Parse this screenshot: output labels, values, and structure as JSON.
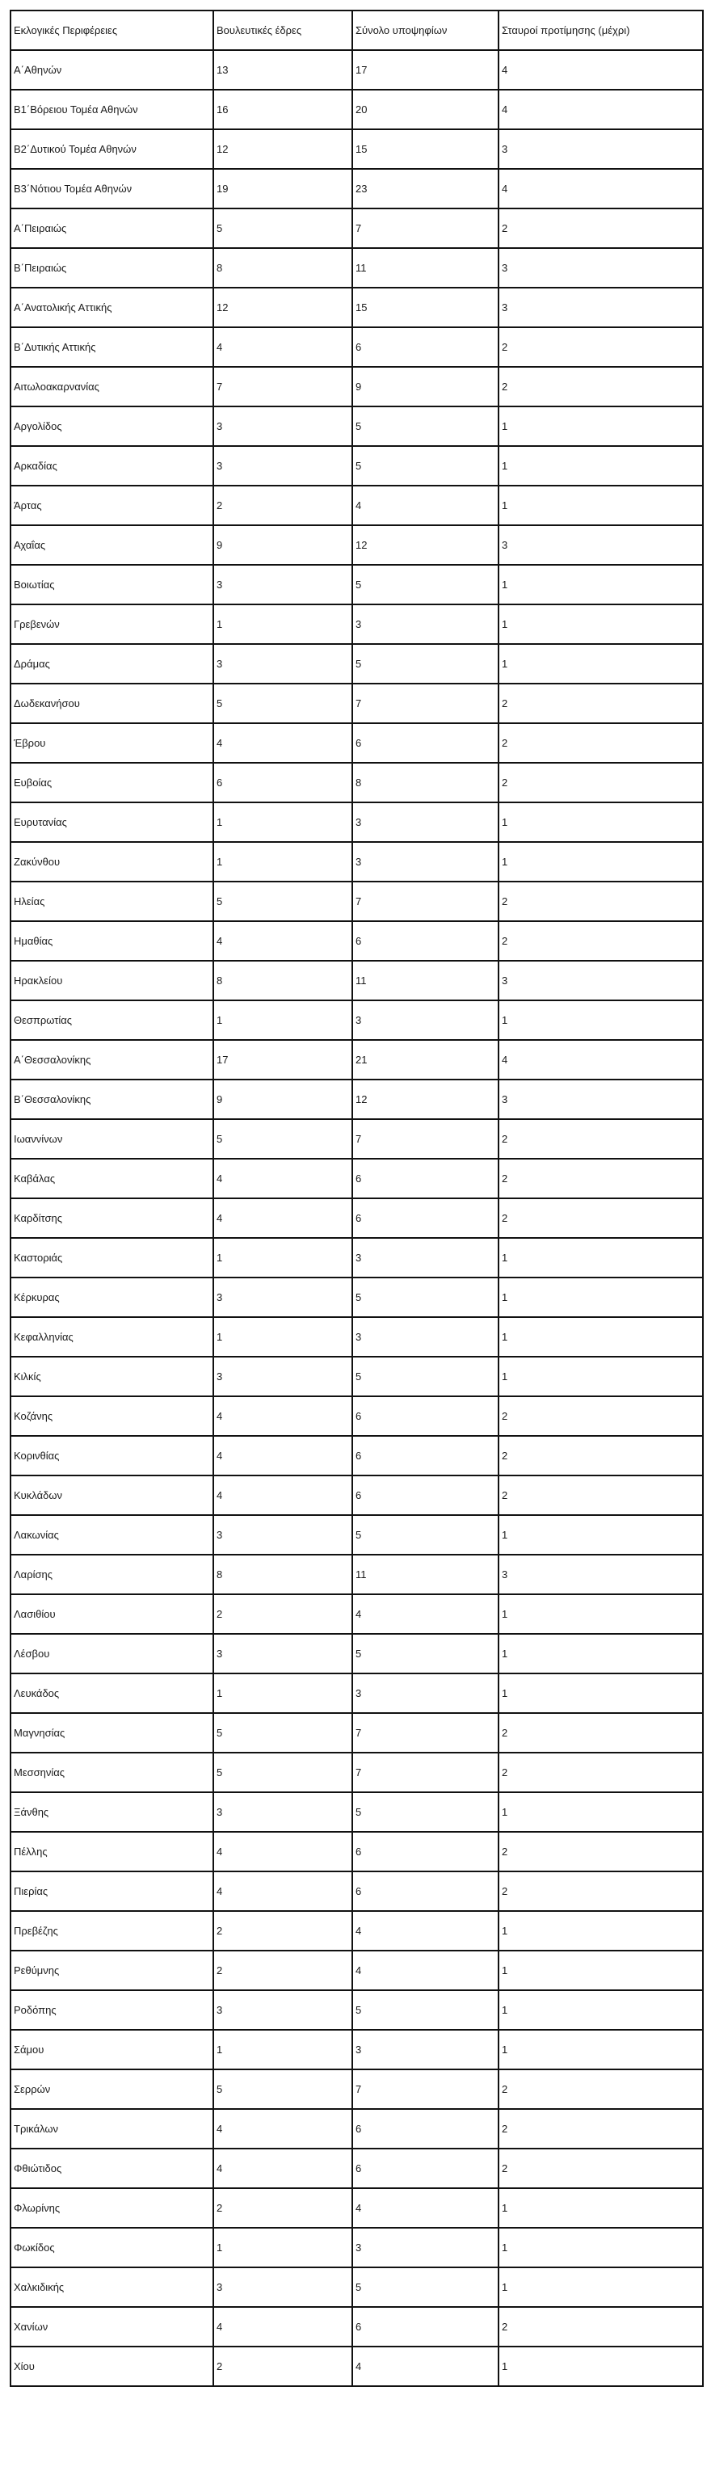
{
  "table": {
    "headers": [
      "Εκλογικές Περιφέρειες",
      "Βουλευτικές έδρες",
      "Σύνολο υποψηφίων",
      "Σταυροί προτίμησης (μέχρι)"
    ],
    "rows": [
      [
        "Α΄Αθηνών",
        "13",
        "17",
        "4"
      ],
      [
        "Β1΄Βόρειου Τομέα Αθηνών",
        "16",
        "20",
        "4"
      ],
      [
        "Β2΄Δυτικού Τομέα Αθηνών",
        "12",
        "15",
        "3"
      ],
      [
        "Β3΄Νότιου Τομέα Αθηνών",
        "19",
        "23",
        "4"
      ],
      [
        "Α΄Πειραιώς",
        "5",
        "7",
        "2"
      ],
      [
        "Β΄Πειραιώς",
        "8",
        "11",
        "3"
      ],
      [
        "Α΄Ανατολικής Αττικής",
        "12",
        "15",
        "3"
      ],
      [
        "Β΄Δυτικής Αττικής",
        "4",
        "6",
        "2"
      ],
      [
        "Αιτωλοακαρνανίας",
        "7",
        "9",
        "2"
      ],
      [
        "Αργολίδος",
        "3",
        "5",
        "1"
      ],
      [
        "Αρκαδίας",
        "3",
        "5",
        "1"
      ],
      [
        "Άρτας",
        "2",
        "4",
        "1"
      ],
      [
        "Αχαΐας",
        "9",
        "12",
        "3"
      ],
      [
        "Βοιωτίας",
        "3",
        "5",
        "1"
      ],
      [
        "Γρεβενών",
        "1",
        "3",
        "1"
      ],
      [
        "Δράμας",
        "3",
        "5",
        "1"
      ],
      [
        "Δωδεκανήσου",
        "5",
        "7",
        "2"
      ],
      [
        "Έβρου",
        "4",
        "6",
        "2"
      ],
      [
        "Ευβοίας",
        "6",
        "8",
        "2"
      ],
      [
        "Ευρυτανίας",
        "1",
        "3",
        "1"
      ],
      [
        "Ζακύνθου",
        "1",
        "3",
        "1"
      ],
      [
        "Ηλείας",
        "5",
        "7",
        "2"
      ],
      [
        "Ημαθίας",
        "4",
        "6",
        "2"
      ],
      [
        "Ηρακλείου",
        "8",
        "11",
        "3"
      ],
      [
        "Θεσπρωτίας",
        "1",
        "3",
        "1"
      ],
      [
        "Α΄Θεσσαλονίκης",
        "17",
        "21",
        "4"
      ],
      [
        "Β΄Θεσσαλονίκης",
        "9",
        "12",
        "3"
      ],
      [
        "Ιωαννίνων",
        "5",
        "7",
        "2"
      ],
      [
        "Καβάλας",
        "4",
        "6",
        "2"
      ],
      [
        "Καρδίτσης",
        "4",
        "6",
        "2"
      ],
      [
        "Καστοριάς",
        "1",
        "3",
        "1"
      ],
      [
        "Κέρκυρας",
        "3",
        "5",
        "1"
      ],
      [
        "Κεφαλληνίας",
        "1",
        "3",
        "1"
      ],
      [
        "Κιλκίς",
        "3",
        "5",
        "1"
      ],
      [
        "Κοζάνης",
        "4",
        "6",
        "2"
      ],
      [
        "Κορινθίας",
        "4",
        "6",
        "2"
      ],
      [
        "Κυκλάδων",
        "4",
        "6",
        "2"
      ],
      [
        "Λακωνίας",
        "3",
        "5",
        "1"
      ],
      [
        "Λαρίσης",
        "8",
        "11",
        "3"
      ],
      [
        "Λασιθίου",
        "2",
        "4",
        "1"
      ],
      [
        "Λέσβου",
        "3",
        "5",
        "1"
      ],
      [
        "Λευκάδος",
        "1",
        "3",
        "1"
      ],
      [
        "Μαγνησίας",
        "5",
        "7",
        "2"
      ],
      [
        "Μεσσηνίας",
        "5",
        "7",
        "2"
      ],
      [
        "Ξάνθης",
        "3",
        "5",
        "1"
      ],
      [
        "Πέλλης",
        "4",
        "6",
        "2"
      ],
      [
        "Πιερίας",
        "4",
        "6",
        "2"
      ],
      [
        "Πρεβέζης",
        "2",
        "4",
        "1"
      ],
      [
        "Ρεθύμνης",
        "2",
        "4",
        "1"
      ],
      [
        "Ροδόπης",
        "3",
        "5",
        "1"
      ],
      [
        "Σάμου",
        "1",
        "3",
        "1"
      ],
      [
        "Σερρών",
        "5",
        "7",
        "2"
      ],
      [
        "Τρικάλων",
        "4",
        "6",
        "2"
      ],
      [
        "Φθιώτιδος",
        "4",
        "6",
        "2"
      ],
      [
        "Φλωρίνης",
        "2",
        "4",
        "1"
      ],
      [
        "Φωκίδος",
        "1",
        "3",
        "1"
      ],
      [
        "Χαλκιδικής",
        "3",
        "5",
        "1"
      ],
      [
        "Χανίων",
        "4",
        "6",
        "2"
      ],
      [
        "Χίου",
        "2",
        "4",
        "1"
      ]
    ]
  }
}
